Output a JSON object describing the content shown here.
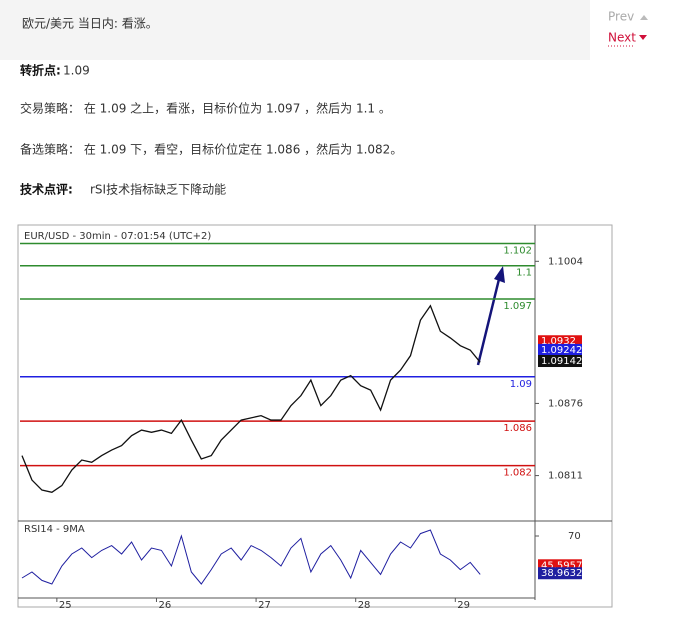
{
  "header": {
    "title": "欧元/美元 当日内: 看涨。"
  },
  "nav": {
    "prev": "Prev",
    "next": "Next"
  },
  "pivot": {
    "label": "转折点:",
    "text": "1.09"
  },
  "strategy": "交易策略： 在 1.09 之上，看涨，目标价位为 1.097 ，然后为 1.1 。",
  "alternative": "备选策略： 在 1.09 下，看空，目标价位定在 1.086 ，然后为 1.082。",
  "comment": {
    "label": "技术点评:",
    "text": "rSI技术指标缺乏下降动能"
  },
  "chart_data": {
    "type": "line",
    "title": "EUR/USD - 30min - 07:01:54 (UTC+2)",
    "x": [
      24.65,
      24.75,
      24.85,
      24.95,
      25.05,
      25.15,
      25.25,
      25.35,
      25.45,
      25.55,
      25.65,
      25.75,
      25.85,
      25.95,
      26.05,
      26.15,
      26.25,
      26.35,
      26.45,
      26.55,
      26.65,
      26.75,
      26.85,
      26.95,
      27.05,
      27.15,
      27.25,
      27.35,
      27.45,
      27.55,
      27.65,
      27.75,
      27.85,
      27.95,
      28.05,
      28.15,
      28.25,
      28.35,
      28.45,
      28.55,
      28.65,
      28.75,
      28.85,
      28.95,
      29.05,
      29.15,
      29.25
    ],
    "values": [
      1.0829,
      1.0807,
      1.0798,
      1.0796,
      1.0802,
      1.0816,
      1.0825,
      1.0823,
      1.0829,
      1.0834,
      1.0838,
      1.0847,
      1.0852,
      1.085,
      1.0852,
      1.0849,
      1.0861,
      1.0843,
      1.0826,
      1.0829,
      1.0843,
      1.0852,
      1.0861,
      1.0863,
      1.0865,
      1.0861,
      1.0861,
      1.0874,
      1.0883,
      1.0897,
      1.0874,
      1.0883,
      1.0897,
      1.0901,
      1.0892,
      1.0888,
      1.087,
      1.0897,
      1.0906,
      1.0919,
      1.0951,
      1.0964,
      1.0941,
      1.0935,
      1.0928,
      1.0924,
      1.0913
    ],
    "color": "#111111",
    "xlim": [
      24.63,
      29.8
    ],
    "xticks": [
      25,
      26,
      27,
      28,
      29
    ],
    "ylim": [
      1.0771,
      1.1034
    ],
    "yticks": [
      1.1004,
      1.0876,
      1.0811
    ],
    "levels": [
      {
        "value": 1.102,
        "color": "#2e8b2e"
      },
      {
        "value": 1.1,
        "color": "#2e8b2e"
      },
      {
        "value": 1.097,
        "color": "#2e8b2e"
      },
      {
        "value": 1.09,
        "color": "#1f1fe0"
      },
      {
        "value": 1.086,
        "color": "#d01010"
      },
      {
        "value": 1.082,
        "color": "#d01010"
      }
    ],
    "price_tags": [
      {
        "value": 1.0932,
        "color": "#e01010"
      },
      {
        "value": 1.09242,
        "color": "#1f1fe0"
      },
      {
        "value": 1.09142,
        "color": "#111111"
      }
    ],
    "rsi": {
      "title": "RSI14 - 9MA",
      "ylim": [
        20,
        80
      ],
      "yticks": [
        70
      ],
      "color": "#1f1fa0",
      "values": [
        35,
        40,
        33,
        30,
        45,
        55,
        60,
        52,
        58,
        62,
        55,
        65,
        50,
        60,
        58,
        45,
        70,
        40,
        30,
        42,
        55,
        60,
        50,
        62,
        58,
        52,
        45,
        60,
        68,
        40,
        55,
        62,
        50,
        35,
        58,
        48,
        38,
        55,
        65,
        60,
        72,
        75,
        55,
        50,
        42,
        48,
        38
      ],
      "tags": [
        {
          "value": 45.5957,
          "color": "#e01010"
        },
        {
          "value": 38.9632,
          "color": "#1f1fa0"
        }
      ]
    }
  }
}
